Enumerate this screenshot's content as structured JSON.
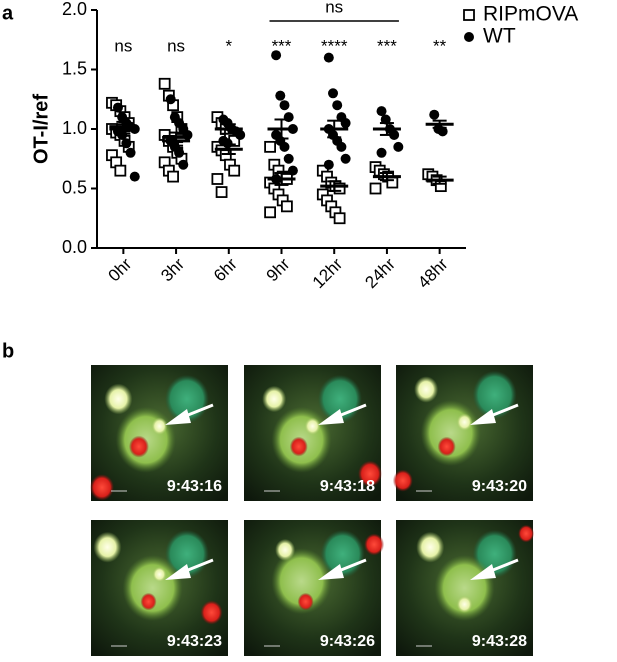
{
  "panel_a_label": "a",
  "chart_data": {
    "type": "strip",
    "y_label": "OT-I/ref",
    "categories": [
      "0hr",
      "3hr",
      "6hr",
      "9hr",
      "12hr",
      "24hr",
      "48hr"
    ],
    "ylim": [
      0,
      2
    ],
    "yticks": [
      {
        "value": 0,
        "label": "0.0"
      },
      {
        "value": 0.5,
        "label": "0.5"
      },
      {
        "value": 1,
        "label": "1.0"
      },
      {
        "value": 1.5,
        "label": "1.5"
      },
      {
        "value": 2,
        "label": "2.0"
      }
    ],
    "significance": [
      "ns",
      "ns",
      "*",
      "***",
      "****",
      "***",
      "**"
    ],
    "bracket": {
      "label": "ns",
      "span": [
        "9hr",
        "24hr"
      ]
    },
    "series": [
      {
        "name": "RIPmOVA",
        "marker": "open-square",
        "color": "#000000",
        "values": [
          [
            1.22,
            1.2,
            1.15,
            1.1,
            1.05,
            1.0,
            0.97,
            0.95,
            0.9,
            0.85,
            0.78,
            0.72,
            0.65
          ],
          [
            1.38,
            1.28,
            1.2,
            1.1,
            1.0,
            0.95,
            0.9,
            0.85,
            0.8,
            0.75,
            0.72,
            0.65,
            0.6
          ],
          [
            1.1,
            1.05,
            1.0,
            0.95,
            0.9,
            0.85,
            0.82,
            0.78,
            0.7,
            0.65,
            0.58,
            0.47
          ],
          [
            0.85,
            0.7,
            0.65,
            0.6,
            0.58,
            0.55,
            0.5,
            0.45,
            0.4,
            0.35,
            0.3
          ],
          [
            0.65,
            0.6,
            0.55,
            0.52,
            0.5,
            0.45,
            0.4,
            0.35,
            0.3,
            0.25
          ],
          [
            0.68,
            0.65,
            0.62,
            0.6,
            0.55,
            0.5
          ],
          [
            0.62,
            0.6,
            0.57,
            0.52
          ]
        ],
        "means": [
          1.0,
          0.93,
          0.83,
          0.58,
          0.52,
          0.6,
          0.57
        ],
        "sems": [
          0.04,
          0.04,
          0.04,
          0.05,
          0.04,
          0.03,
          0.03
        ]
      },
      {
        "name": "WT",
        "marker": "filled-circle",
        "color": "#000000",
        "values": [
          [
            1.18,
            1.1,
            1.05,
            1.02,
            1.0,
            0.98,
            0.95,
            0.88,
            0.8,
            0.6
          ],
          [
            1.25,
            1.1,
            1.05,
            1.0,
            0.95,
            0.9,
            0.85,
            0.8,
            0.7
          ],
          [
            1.08,
            1.05,
            1.0,
            0.98,
            0.95,
            0.9,
            0.88
          ],
          [
            1.62,
            1.28,
            1.2,
            1.1,
            1.0,
            0.95,
            0.9,
            0.85,
            0.75,
            0.65,
            0.58
          ],
          [
            1.6,
            1.3,
            1.2,
            1.1,
            1.05,
            1.0,
            0.95,
            0.9,
            0.85,
            0.75,
            0.7
          ],
          [
            1.15,
            1.08,
            1.0,
            0.95,
            0.85,
            0.8
          ],
          [
            1.12,
            1.0,
            0.98
          ]
        ],
        "means": [
          1.02,
          0.9,
          1.0,
          1.0,
          1.0,
          1.0,
          1.04
        ],
        "sems": [
          0.04,
          0.04,
          0.04,
          0.08,
          0.07,
          0.05,
          0.03
        ]
      }
    ]
  },
  "panel_b": {
    "label": "b",
    "frames": [
      "9:43:16",
      "9:43:18",
      "9:43:20",
      "9:43:23",
      "9:43:26",
      "9:43:28"
    ]
  }
}
